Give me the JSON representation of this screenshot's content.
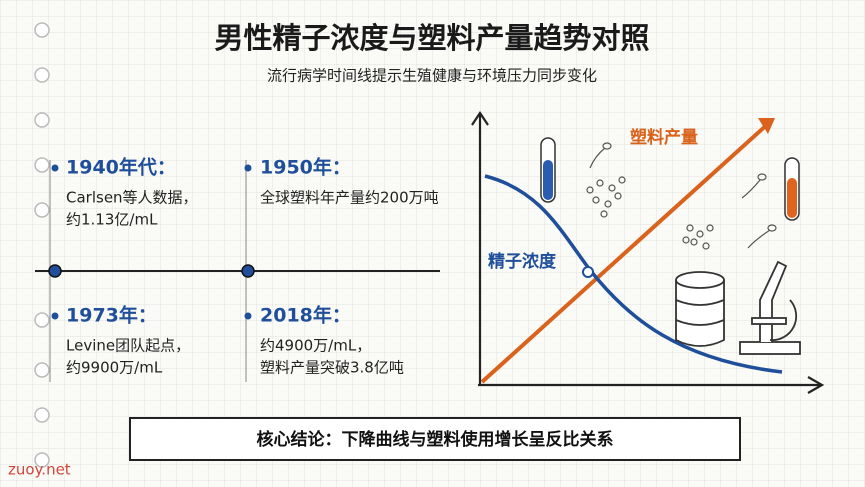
{
  "header": {
    "title": "男性精子浓度与塑料产量趋势对照",
    "subtitle": "流行病学时间线提示生殖健康与环境压力同步变化"
  },
  "timeline": [
    {
      "year": "1940年代：",
      "lines": [
        "Carlsen等人数据，",
        "约1.13亿/mL"
      ]
    },
    {
      "year": "1950年：",
      "lines": [
        "全球塑料年产量约200万吨"
      ]
    },
    {
      "year": "1973年：",
      "lines": [
        "Levine团队起点，",
        "约9900万/mL"
      ]
    },
    {
      "year": "2018年：",
      "lines": [
        "约4900万/mL，",
        "塑料产量突破3.8亿吨"
      ]
    }
  ],
  "illustration": {
    "plastic_label": "塑料产量",
    "sperm_label": "精子浓度"
  },
  "conclusion": "核心结论：下降曲线与塑料使用增长呈反比关系",
  "watermark": "zuoy.net"
}
